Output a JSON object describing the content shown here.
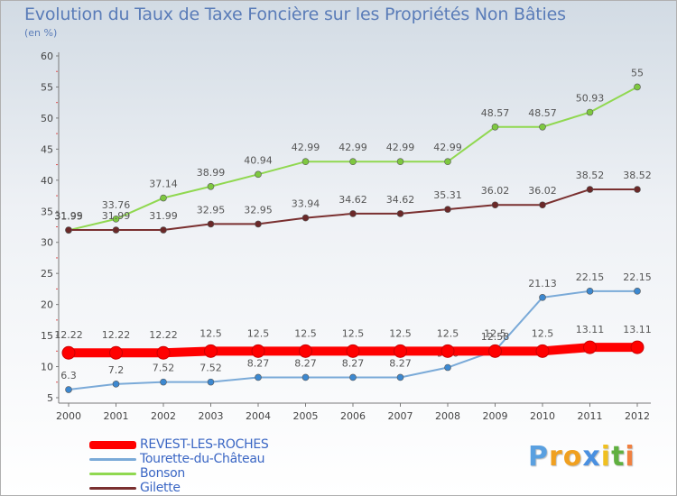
{
  "chart_data": {
    "type": "line",
    "title": "Evolution du Taux de Taxe Foncière sur les Propriétés Non Bâties",
    "unit_label": "(en %)",
    "x": [
      "2000",
      "2001",
      "2002",
      "2003",
      "2004",
      "2005",
      "2006",
      "2007",
      "2008",
      "2009",
      "2010",
      "2011",
      "2012"
    ],
    "ylim": [
      5,
      60
    ],
    "yticks": [
      5,
      10,
      15,
      20,
      25,
      30,
      35,
      40,
      45,
      50,
      55,
      60
    ],
    "grid": false,
    "legend_position": "bottom-left",
    "series": [
      {
        "name": "Bonson",
        "color": "#90d850",
        "marker": "#7ec840",
        "values": [
          31.95,
          33.76,
          37.14,
          38.99,
          40.94,
          42.99,
          42.99,
          42.99,
          42.99,
          48.57,
          48.57,
          50.93,
          55
        ],
        "labels": [
          "31.95",
          "33.76",
          "37.14",
          "38.99",
          "40.94",
          "42.99",
          "42.99",
          "42.99",
          "42.99",
          "48.57",
          "48.57",
          "50.93",
          "55"
        ]
      },
      {
        "name": "Gilette",
        "color": "#7a3030",
        "marker": "#6a2828",
        "values": [
          31.99,
          31.99,
          31.99,
          32.95,
          32.95,
          33.94,
          34.62,
          34.62,
          35.31,
          36.02,
          36.02,
          38.52,
          38.52
        ],
        "labels": [
          "31.99",
          "31.99",
          "31.99",
          "32.95",
          "32.95",
          "33.94",
          "34.62",
          "34.62",
          "35.31",
          "36.02",
          "36.02",
          "38.52",
          "38.52"
        ]
      },
      {
        "name": "Tourette-du-Château",
        "color": "#7aaad8",
        "marker": "#3c88d0",
        "values": [
          6.3,
          7.2,
          7.52,
          7.52,
          8.27,
          8.27,
          8.27,
          8.27,
          9.86,
          12.58,
          21.13,
          22.15,
          22.15
        ],
        "labels": [
          "6.3",
          "7.2",
          "7.52",
          "7.52",
          "8.27",
          "8.27",
          "8.27",
          "8.27",
          "9.86",
          "12.58",
          "21.13",
          "22.15",
          "22.15"
        ]
      },
      {
        "name": "REVEST-LES-ROCHES",
        "color": "#ff0000",
        "marker": "#ff0000",
        "values": [
          12.22,
          12.22,
          12.22,
          12.5,
          12.5,
          12.5,
          12.5,
          12.5,
          12.5,
          12.5,
          12.5,
          13.11,
          13.11
        ],
        "labels": [
          "12.22",
          "12.22",
          "12.22",
          "12.5",
          "12.5",
          "12.5",
          "12.5",
          "12.5",
          "12.5",
          "12.5",
          "12.5",
          "13.11",
          "13.11"
        ]
      }
    ]
  },
  "legend": [
    {
      "label": "REVEST-LES-ROCHES",
      "color": "#ff0000"
    },
    {
      "label": "Tourette-du-Château",
      "color": "#7aaad8"
    },
    {
      "label": "Bonson",
      "color": "#90d850"
    },
    {
      "label": "Gilette",
      "color": "#7a3030"
    }
  ],
  "logo": {
    "letters": [
      "P",
      "r",
      "o",
      "x",
      "i",
      "t",
      "i"
    ],
    "colors": [
      "#5aa0e0",
      "#f0a020",
      "#f0a020",
      "#4a90e0",
      "#f0c020",
      "#60b040",
      "#f08040"
    ]
  }
}
